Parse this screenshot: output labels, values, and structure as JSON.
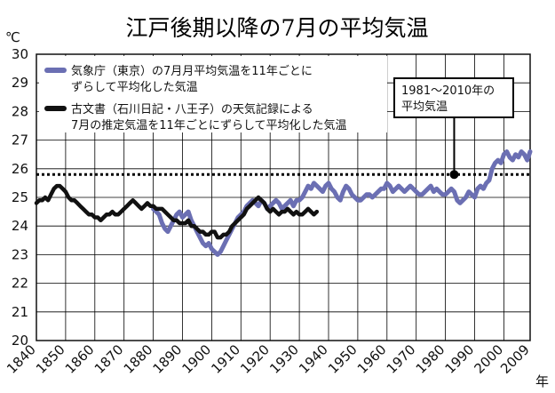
{
  "chart_data": {
    "type": "line",
    "title": "江戸後期以降の7月の平均気温",
    "y_unit": "℃",
    "x_unit": "年",
    "xlim": [
      1840,
      2009
    ],
    "ylim": [
      20,
      30
    ],
    "x_ticks": [
      1840,
      1850,
      1860,
      1870,
      1880,
      1890,
      1900,
      1910,
      1920,
      1930,
      1940,
      1950,
      1960,
      1970,
      1980,
      1990,
      2000,
      2009
    ],
    "y_ticks": [
      20,
      21,
      22,
      23,
      24,
      25,
      26,
      27,
      28,
      29,
      30
    ],
    "grid": true,
    "legend_position": "top-left",
    "series": [
      {
        "name": "気象庁（東京）の7月月平均気温を11年ごとにずらして平均化した気温",
        "legend_lines": [
          "気象庁（東京）の7月月平均気温を11年ごとに",
          "ずらして平均化した気温"
        ],
        "color": "#6b6fb3",
        "x": [
          1880,
          1881,
          1882,
          1883,
          1884,
          1885,
          1886,
          1887,
          1888,
          1889,
          1890,
          1891,
          1892,
          1893,
          1894,
          1895,
          1896,
          1897,
          1898,
          1899,
          1900,
          1901,
          1902,
          1903,
          1904,
          1905,
          1906,
          1907,
          1908,
          1909,
          1910,
          1911,
          1912,
          1913,
          1914,
          1915,
          1916,
          1917,
          1918,
          1919,
          1920,
          1921,
          1922,
          1923,
          1924,
          1925,
          1926,
          1927,
          1928,
          1929,
          1930,
          1931,
          1932,
          1933,
          1934,
          1935,
          1936,
          1937,
          1938,
          1939,
          1940,
          1941,
          1942,
          1943,
          1944,
          1945,
          1946,
          1947,
          1948,
          1949,
          1950,
          1951,
          1952,
          1953,
          1954,
          1955,
          1956,
          1957,
          1958,
          1959,
          1960,
          1961,
          1962,
          1963,
          1964,
          1965,
          1966,
          1967,
          1968,
          1969,
          1970,
          1971,
          1972,
          1973,
          1974,
          1975,
          1976,
          1977,
          1978,
          1979,
          1980,
          1981,
          1982,
          1983,
          1984,
          1985,
          1986,
          1987,
          1988,
          1989,
          1990,
          1991,
          1992,
          1993,
          1994,
          1995,
          1996,
          1997,
          1998,
          1999,
          2000,
          2001,
          2002,
          2003,
          2004,
          2005,
          2006,
          2007,
          2008,
          2009
        ],
        "values": [
          24.6,
          24.5,
          24.4,
          24.1,
          23.9,
          23.8,
          24.0,
          24.2,
          24.4,
          24.5,
          24.3,
          24.4,
          24.5,
          24.2,
          24.0,
          23.8,
          23.6,
          23.4,
          23.3,
          23.4,
          23.2,
          23.1,
          23.0,
          23.1,
          23.3,
          23.5,
          23.7,
          23.9,
          24.1,
          24.3,
          24.4,
          24.5,
          24.7,
          24.8,
          24.9,
          24.8,
          24.7,
          24.9,
          24.8,
          24.6,
          24.7,
          24.8,
          24.9,
          24.8,
          24.6,
          24.7,
          24.8,
          24.9,
          24.7,
          24.9,
          24.9,
          25.0,
          25.2,
          25.4,
          25.3,
          25.5,
          25.4,
          25.3,
          25.2,
          25.4,
          25.5,
          25.3,
          25.2,
          25.0,
          24.9,
          25.2,
          25.4,
          25.3,
          25.1,
          25.0,
          24.9,
          24.9,
          25.0,
          25.1,
          25.1,
          25.0,
          25.1,
          25.2,
          25.3,
          25.3,
          25.5,
          25.4,
          25.2,
          25.3,
          25.4,
          25.3,
          25.2,
          25.3,
          25.4,
          25.3,
          25.2,
          25.1,
          25.1,
          25.2,
          25.3,
          25.4,
          25.2,
          25.3,
          25.2,
          25.1,
          25.1,
          25.2,
          25.3,
          25.2,
          24.9,
          24.8,
          24.9,
          25.0,
          25.2,
          25.1,
          25.0,
          25.3,
          25.4,
          25.3,
          25.5,
          25.6,
          26.0,
          26.2,
          26.3,
          26.2,
          26.5,
          26.6,
          26.4,
          26.3,
          26.5,
          26.4,
          26.6,
          26.5,
          26.3,
          26.6
        ]
      },
      {
        "name": "古文書（石川日記・八王子）の天気記録による7月の推定気温を11年ごとにずらして平均化した気温",
        "legend_lines": [
          "古文書（石川日記・八王子）の天気記録による",
          "7月の推定気温を11年ごとにずらして平均化した気温"
        ],
        "color": "#111111",
        "x": [
          1840,
          1841,
          1842,
          1843,
          1844,
          1845,
          1846,
          1847,
          1848,
          1849,
          1850,
          1851,
          1852,
          1853,
          1854,
          1855,
          1856,
          1857,
          1858,
          1859,
          1860,
          1861,
          1862,
          1863,
          1864,
          1865,
          1866,
          1867,
          1868,
          1869,
          1870,
          1871,
          1872,
          1873,
          1874,
          1875,
          1876,
          1877,
          1878,
          1879,
          1880,
          1881,
          1882,
          1883,
          1884,
          1885,
          1886,
          1887,
          1888,
          1889,
          1890,
          1891,
          1892,
          1893,
          1894,
          1895,
          1896,
          1897,
          1898,
          1899,
          1900,
          1901,
          1902,
          1903,
          1904,
          1905,
          1906,
          1907,
          1908,
          1909,
          1910,
          1911,
          1912,
          1913,
          1914,
          1915,
          1916,
          1917,
          1918,
          1919,
          1920,
          1921,
          1922,
          1923,
          1924,
          1925,
          1926,
          1927,
          1928,
          1929,
          1930,
          1931,
          1932,
          1933,
          1934,
          1935,
          1936
        ],
        "values": [
          24.8,
          24.9,
          24.9,
          25.0,
          24.9,
          25.1,
          25.3,
          25.4,
          25.4,
          25.3,
          25.2,
          25.0,
          24.9,
          24.9,
          24.8,
          24.7,
          24.6,
          24.5,
          24.4,
          24.4,
          24.3,
          24.3,
          24.2,
          24.3,
          24.4,
          24.4,
          24.5,
          24.4,
          24.4,
          24.5,
          24.6,
          24.7,
          24.8,
          24.9,
          24.8,
          24.7,
          24.6,
          24.7,
          24.8,
          24.7,
          24.7,
          24.6,
          24.6,
          24.6,
          24.5,
          24.4,
          24.3,
          24.2,
          24.2,
          24.1,
          24.1,
          24.1,
          24.2,
          24.0,
          24.0,
          23.9,
          23.8,
          23.8,
          23.7,
          23.7,
          23.8,
          23.8,
          23.6,
          23.6,
          23.7,
          23.7,
          23.8,
          24.0,
          24.1,
          24.2,
          24.3,
          24.4,
          24.6,
          24.7,
          24.8,
          24.9,
          25.0,
          24.9,
          24.8,
          24.6,
          24.5,
          24.6,
          24.5,
          24.4,
          24.5,
          24.5,
          24.6,
          24.5,
          24.4,
          24.5,
          24.4,
          24.4,
          24.5,
          24.6,
          24.5,
          24.4,
          24.5
        ]
      }
    ],
    "reference_line": {
      "value": 25.8,
      "label_lines": [
        "1981〜2010年の",
        "平均気温"
      ],
      "anchor_x": 1983
    }
  }
}
